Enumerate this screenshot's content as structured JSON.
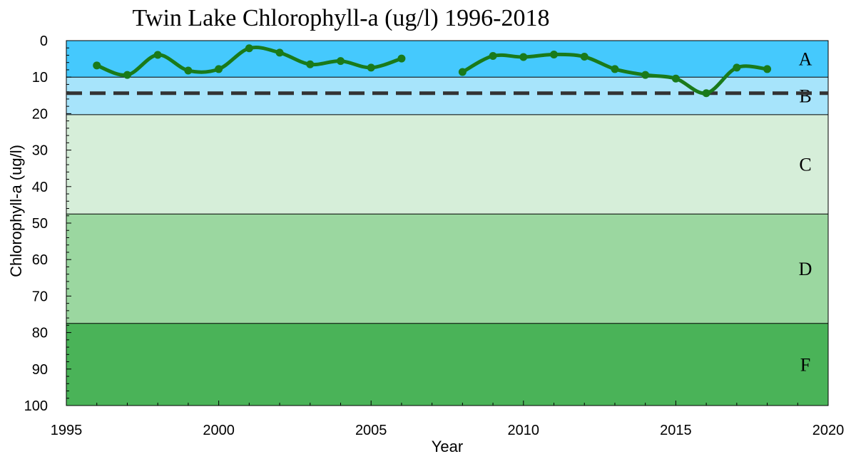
{
  "chart_data": {
    "type": "line",
    "title": "Twin Lake Chlorophyll-a (ug/l) 1996-2018",
    "xlabel": "Year",
    "ylabel": "Chlorophyll-a (ug/l)",
    "xlim": [
      1995,
      2020
    ],
    "ylim": [
      100,
      0
    ],
    "y_inverted": true,
    "x_ticks": [
      1995,
      2000,
      2005,
      2010,
      2015,
      2020
    ],
    "y_ticks": [
      0,
      10,
      20,
      30,
      40,
      50,
      60,
      70,
      80,
      90,
      100
    ],
    "grid": false,
    "series": [
      {
        "color": "#1a7a1a",
        "segments": [
          {
            "x": [
              1996,
              1997,
              1998,
              1999,
              2000,
              2001,
              2002,
              2003,
              2004,
              2005,
              2006
            ],
            "y": [
              6.8,
              9.4,
              3.9,
              8.2,
              7.8,
              2.1,
              3.3,
              6.5,
              5.6,
              7.4,
              4.9
            ]
          },
          {
            "x": [
              2008,
              2009,
              2010,
              2011,
              2012,
              2013,
              2014,
              2015,
              2016,
              2017,
              2018
            ],
            "y": [
              8.6,
              4.2,
              4.5,
              3.8,
              4.4,
              7.8,
              9.4,
              10.4,
              14.4,
              7.4,
              7.8
            ]
          }
        ]
      }
    ],
    "reference_line": {
      "y": 14.4,
      "style": "dashed",
      "color": "#333333"
    },
    "bands": [
      {
        "label": "A",
        "from": 0,
        "to": 10,
        "color": "#45c9fd"
      },
      {
        "label": "B",
        "from": 10,
        "to": 20.3,
        "color": "#a7e4fb"
      },
      {
        "label": "C",
        "from": 20.3,
        "to": 47.5,
        "color": "#d6eed9"
      },
      {
        "label": "D",
        "from": 47.5,
        "to": 77.5,
        "color": "#9bd7a0"
      },
      {
        "label": "F",
        "from": 77.5,
        "to": 100,
        "color": "#4ab358"
      }
    ]
  }
}
